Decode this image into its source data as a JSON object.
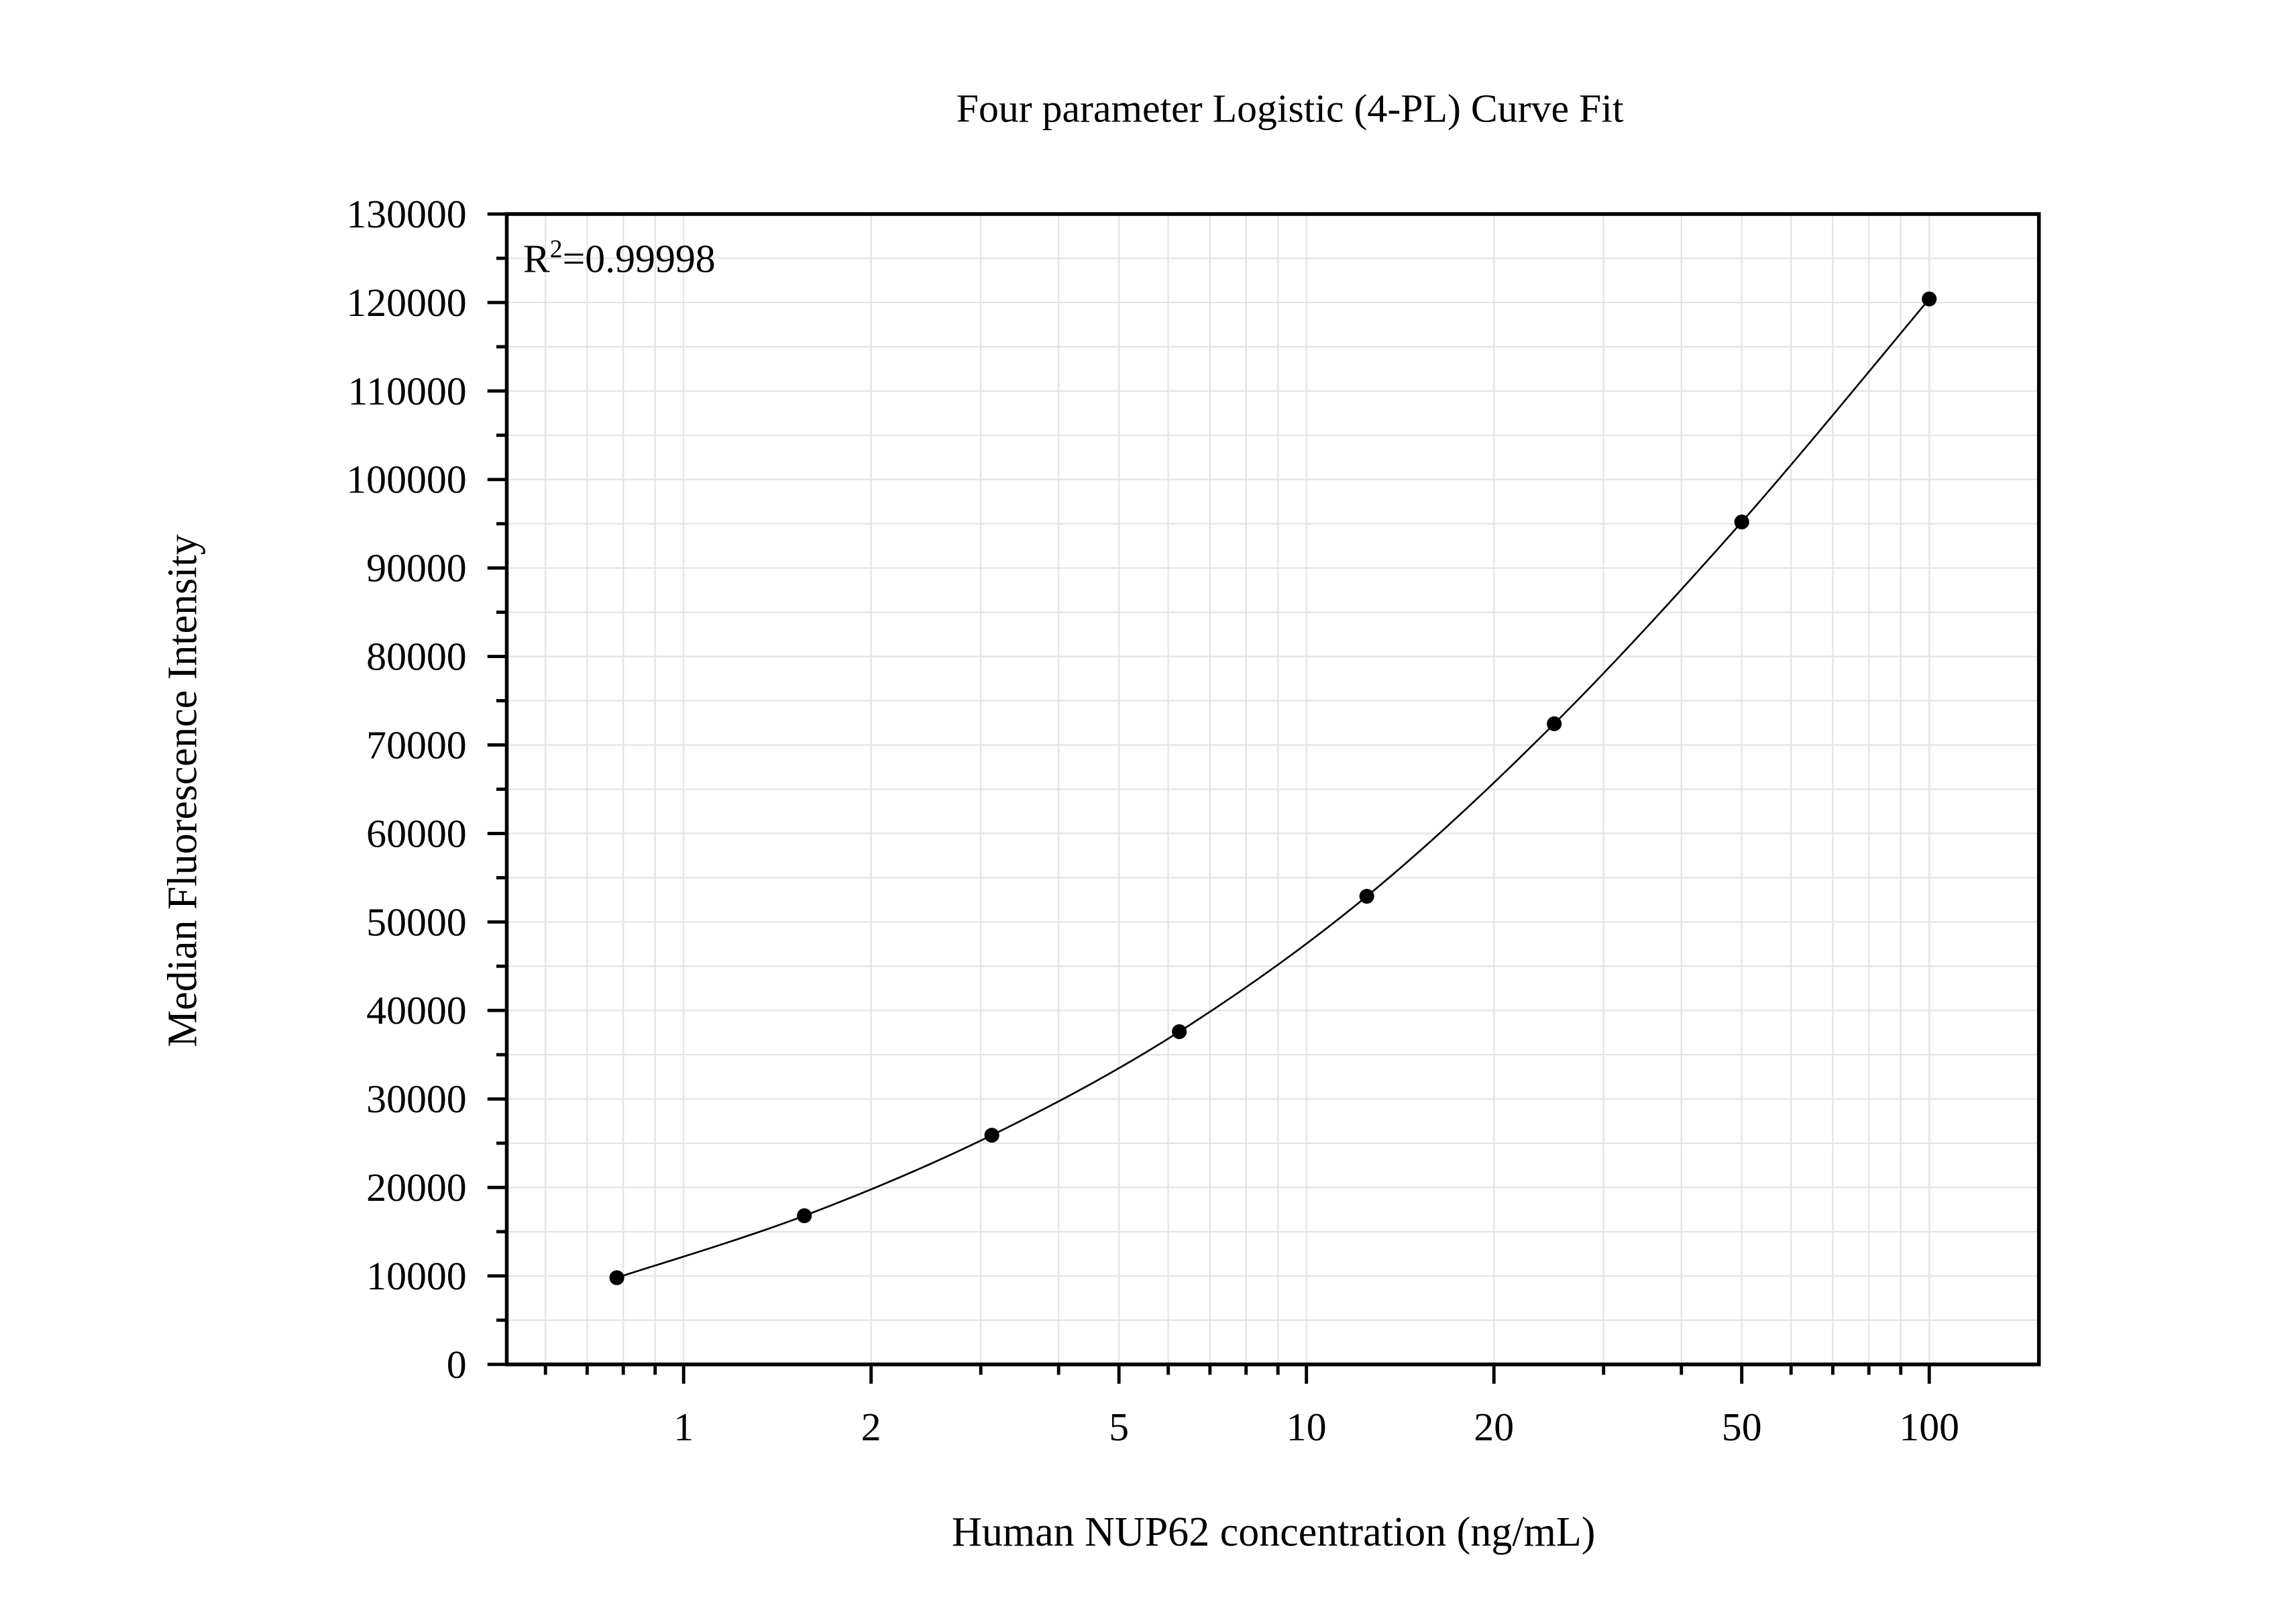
{
  "chart_data": {
    "type": "scatter-line",
    "title": "Four parameter Logistic (4-PL) Curve Fit",
    "x_label": "Human NUP62 concentration (ng/mL)",
    "y_label": "Median Fluorescence Intensity",
    "annotation": [
      "R",
      "2",
      "=0.99998"
    ],
    "log_x": true,
    "grid": true,
    "xlim": [
      0.52,
      150
    ],
    "ylim": [
      0,
      130000
    ],
    "xticks": [
      1,
      2,
      5,
      10,
      20,
      50,
      100
    ],
    "xminorticks": [
      0.6,
      0.7,
      0.8,
      0.9,
      3,
      4,
      6,
      7,
      8,
      9,
      30,
      40,
      60,
      70,
      80,
      90
    ],
    "yticks": [
      0,
      10000,
      20000,
      30000,
      40000,
      50000,
      60000,
      70000,
      80000,
      90000,
      100000,
      110000,
      120000,
      130000
    ],
    "yminorticks": [
      5000,
      15000,
      25000,
      35000,
      45000,
      55000,
      65000,
      75000,
      85000,
      95000,
      105000,
      115000,
      125000
    ],
    "series": [
      {
        "color": "#000000",
        "x": [
          0.78125,
          1.5625,
          3.125,
          6.25,
          12.5,
          25,
          50,
          100
        ],
        "values": [
          9800,
          16800,
          25900,
          37600,
          52900,
          72400,
          95200,
          120400
        ]
      }
    ]
  }
}
